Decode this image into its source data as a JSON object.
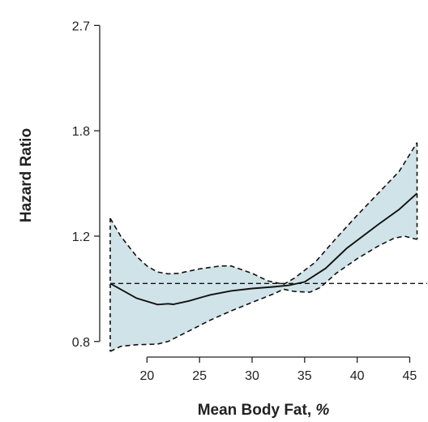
{
  "chart_data": {
    "type": "line",
    "title": "",
    "xlabel_text": "Mean Body Fat, ",
    "xlabel_unit": "%",
    "ylabel": "Hazard Ratio",
    "scale": "log",
    "xlim": [
      15.5,
      46.2
    ],
    "ylim": [
      0.77,
      2.78
    ],
    "x_ticks": [
      20,
      25,
      30,
      35,
      40,
      45
    ],
    "x_tick_labels": [
      "20",
      "25",
      "30",
      "35",
      "40",
      "45"
    ],
    "y_ticks": [
      0.8,
      1.2,
      1.8,
      2.7
    ],
    "y_tick_labels": [
      "0.8",
      "1.2",
      "1.8",
      "2.7"
    ],
    "reference_line": 1.0,
    "colors": {
      "band": "#d0e3e8",
      "line": "#111111",
      "axis": "#222222"
    },
    "series": [
      {
        "role": "estimate",
        "points": [
          [
            16.5,
            1.0
          ],
          [
            19,
            0.945
          ],
          [
            21,
            0.922
          ],
          [
            22,
            0.925
          ],
          [
            22.5,
            0.923
          ],
          [
            24,
            0.935
          ],
          [
            26,
            0.957
          ],
          [
            28,
            0.972
          ],
          [
            30,
            0.981
          ],
          [
            32,
            0.987
          ],
          [
            33.5,
            0.993
          ],
          [
            35,
            1.006
          ],
          [
            37,
            1.06
          ],
          [
            39,
            1.145
          ],
          [
            42,
            1.255
          ],
          [
            44,
            1.33
          ],
          [
            45.7,
            1.415
          ]
        ]
      },
      {
        "role": "upper-ci",
        "points": [
          [
            16.5,
            1.285
          ],
          [
            17.5,
            1.2
          ],
          [
            19,
            1.11
          ],
          [
            20,
            1.07
          ],
          [
            21,
            1.045
          ],
          [
            22,
            1.038
          ],
          [
            23,
            1.04
          ],
          [
            25,
            1.058
          ],
          [
            27,
            1.07
          ],
          [
            28,
            1.07
          ],
          [
            30,
            1.04
          ],
          [
            31.5,
            1.01
          ],
          [
            33,
            0.997
          ],
          [
            34,
            1.02
          ],
          [
            36,
            1.085
          ],
          [
            38,
            1.19
          ],
          [
            40,
            1.3
          ],
          [
            42,
            1.415
          ],
          [
            44,
            1.54
          ],
          [
            45.7,
            1.72
          ]
        ]
      },
      {
        "role": "lower-ci",
        "points": [
          [
            16.5,
            0.77
          ],
          [
            17.5,
            0.785
          ],
          [
            19,
            0.79
          ],
          [
            21,
            0.792
          ],
          [
            22,
            0.8
          ],
          [
            24,
            0.833
          ],
          [
            26,
            0.868
          ],
          [
            28,
            0.9
          ],
          [
            30,
            0.93
          ],
          [
            32,
            0.96
          ],
          [
            33,
            0.978
          ],
          [
            34,
            0.97
          ],
          [
            35.5,
            0.967
          ],
          [
            36.5,
            0.985
          ],
          [
            38,
            1.04
          ],
          [
            40,
            1.1
          ],
          [
            42,
            1.155
          ],
          [
            43.5,
            1.19
          ],
          [
            44.5,
            1.2
          ],
          [
            45.7,
            1.185
          ]
        ]
      }
    ]
  }
}
